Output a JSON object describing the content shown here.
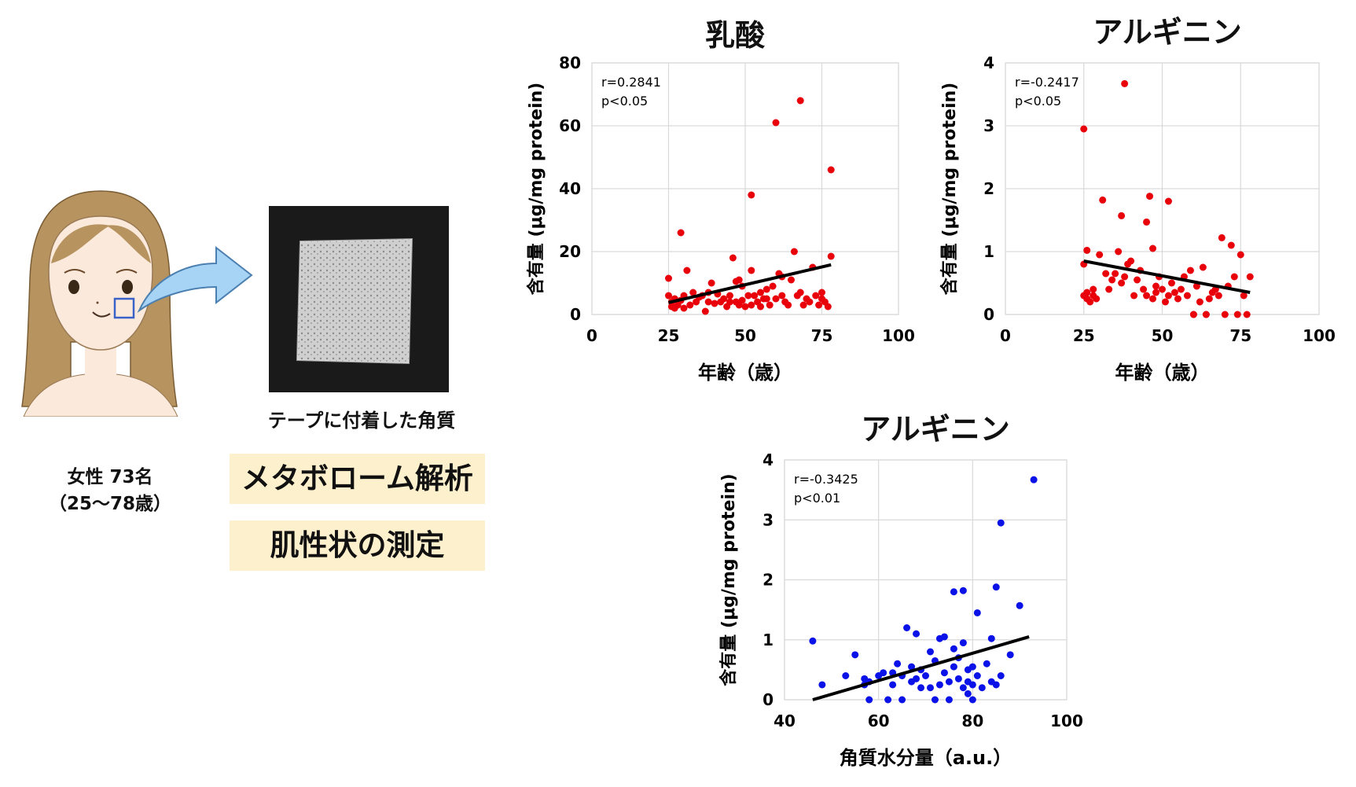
{
  "subject": {
    "line1": "女性 73名",
    "line2": "（25〜78歳）"
  },
  "tape_label": "テープに付着した角質",
  "badges": [
    "メタボローム解析",
    "肌性状の測定"
  ],
  "chart_data": [
    {
      "type": "scatter",
      "title": "乳酸",
      "xlabel": "年齢（歳）",
      "ylabel": "含有量 (μg/mg protein)",
      "xlim": [
        0,
        100
      ],
      "ylim": [
        0,
        80
      ],
      "xticks": [
        0,
        25,
        50,
        75,
        100
      ],
      "yticks": [
        0,
        20,
        40,
        60,
        80
      ],
      "annotation": [
        "r=0.2841",
        "p<0.05"
      ],
      "color": "#e8000b",
      "trendline": [
        [
          25,
          3.8
        ],
        [
          78,
          15.8
        ]
      ],
      "points": [
        [
          25,
          11.5
        ],
        [
          25,
          6
        ],
        [
          26,
          4
        ],
        [
          26,
          2.5
        ],
        [
          27,
          5
        ],
        [
          27,
          2
        ],
        [
          28,
          3
        ],
        [
          29,
          4.5
        ],
        [
          29,
          26
        ],
        [
          30,
          2
        ],
        [
          30,
          6
        ],
        [
          31,
          14
        ],
        [
          32,
          3
        ],
        [
          33,
          7
        ],
        [
          34,
          4
        ],
        [
          35,
          5.5
        ],
        [
          36,
          6
        ],
        [
          37,
          1
        ],
        [
          38,
          4
        ],
        [
          39,
          10
        ],
        [
          40,
          3.5
        ],
        [
          41,
          6.5
        ],
        [
          42,
          4
        ],
        [
          43,
          5
        ],
        [
          44,
          2.5
        ],
        [
          45,
          6
        ],
        [
          46,
          18
        ],
        [
          47,
          10.5
        ],
        [
          47,
          4
        ],
        [
          48,
          11
        ],
        [
          49,
          9
        ],
        [
          49,
          4.5
        ],
        [
          50,
          2.5
        ],
        [
          51,
          6
        ],
        [
          52,
          3
        ],
        [
          52,
          38
        ],
        [
          52,
          14
        ],
        [
          53,
          6
        ],
        [
          54,
          4
        ],
        [
          55,
          2.5
        ],
        [
          56,
          5
        ],
        [
          57,
          8
        ],
        [
          58,
          3
        ],
        [
          59,
          9
        ],
        [
          60,
          5
        ],
        [
          60,
          61
        ],
        [
          61,
          13
        ],
        [
          62,
          6
        ],
        [
          63,
          4
        ],
        [
          64,
          3
        ],
        [
          65,
          11
        ],
        [
          66,
          20
        ],
        [
          67,
          6
        ],
        [
          68,
          7
        ],
        [
          68,
          68
        ],
        [
          69,
          3
        ],
        [
          70,
          5
        ],
        [
          71,
          4
        ],
        [
          72,
          15
        ],
        [
          73,
          6
        ],
        [
          74,
          3
        ],
        [
          75,
          5
        ],
        [
          75,
          7
        ],
        [
          76,
          4
        ],
        [
          77,
          2.5
        ],
        [
          78,
          46
        ],
        [
          78,
          18.5
        ],
        [
          45,
          4
        ],
        [
          55,
          7
        ],
        [
          38,
          7
        ],
        [
          62,
          12
        ],
        [
          48,
          3
        ],
        [
          57,
          5
        ]
      ]
    },
    {
      "type": "scatter",
      "title": "アルギニン",
      "xlabel": "年齢（歳）",
      "ylabel": "含有量 (μg/mg protein)",
      "xlim": [
        0,
        100
      ],
      "ylim": [
        0,
        4
      ],
      "xticks": [
        0,
        25,
        50,
        75,
        100
      ],
      "yticks": [
        0,
        1,
        2,
        3,
        4
      ],
      "annotation": [
        "r=-0.2417",
        "p<0.05"
      ],
      "color": "#e8000b",
      "trendline": [
        [
          25,
          0.85
        ],
        [
          78,
          0.35
        ]
      ],
      "points": [
        [
          25,
          2.95
        ],
        [
          25,
          0.8
        ],
        [
          25,
          0.3
        ],
        [
          26,
          0.35
        ],
        [
          26,
          0.25
        ],
        [
          26,
          1.02
        ],
        [
          27,
          0.2
        ],
        [
          28,
          0.3
        ],
        [
          28,
          0.4
        ],
        [
          29,
          0.25
        ],
        [
          30,
          0.95
        ],
        [
          31,
          1.82
        ],
        [
          32,
          0.65
        ],
        [
          33,
          0.4
        ],
        [
          34,
          0.55
        ],
        [
          35,
          0.65
        ],
        [
          36,
          1.0
        ],
        [
          37,
          0.5
        ],
        [
          37,
          1.57
        ],
        [
          38,
          3.67
        ],
        [
          38,
          0.6
        ],
        [
          39,
          0.8
        ],
        [
          40,
          0.85
        ],
        [
          41,
          0.3
        ],
        [
          42,
          0.55
        ],
        [
          43,
          0.7
        ],
        [
          44,
          0.4
        ],
        [
          45,
          1.47
        ],
        [
          45,
          0.3
        ],
        [
          46,
          1.88
        ],
        [
          47,
          0.25
        ],
        [
          47,
          1.05
        ],
        [
          48,
          0.35
        ],
        [
          48,
          0.45
        ],
        [
          49,
          0.6
        ],
        [
          50,
          0.4
        ],
        [
          51,
          0.2
        ],
        [
          52,
          0.3
        ],
        [
          52,
          1.8
        ],
        [
          53,
          0.5
        ],
        [
          54,
          0.35
        ],
        [
          55,
          0.25
        ],
        [
          56,
          0.4
        ],
        [
          57,
          0.6
        ],
        [
          58,
          0.3
        ],
        [
          59,
          0.7
        ],
        [
          60,
          0.0
        ],
        [
          61,
          0.45
        ],
        [
          62,
          0.2
        ],
        [
          63,
          0.75
        ],
        [
          64,
          0.0
        ],
        [
          65,
          0.25
        ],
        [
          66,
          0.35
        ],
        [
          67,
          0.4
        ],
        [
          68,
          0.3
        ],
        [
          69,
          1.22
        ],
        [
          70,
          0.0
        ],
        [
          71,
          0.45
        ],
        [
          72,
          1.1
        ],
        [
          73,
          0.6
        ],
        [
          74,
          0.0
        ],
        [
          75,
          0.95
        ],
        [
          76,
          0.3
        ],
        [
          77,
          0.0
        ],
        [
          78,
          0.6
        ],
        [
          64,
          0.0
        ],
        [
          60,
          0.0
        ]
      ]
    },
    {
      "type": "scatter",
      "title": "アルギニン",
      "xlabel": "角質水分量（a.u.）",
      "ylabel": "含有量 (μg/mg protein)",
      "xlim": [
        40,
        100
      ],
      "ylim": [
        0,
        4
      ],
      "xticks": [
        40,
        60,
        80,
        100
      ],
      "yticks": [
        0,
        1,
        2,
        3,
        4
      ],
      "annotation": [
        "r=-0.3425",
        "p<0.01"
      ],
      "color": "#0a12e8",
      "trendline": [
        [
          46,
          0.0
        ],
        [
          92,
          1.05
        ]
      ],
      "points": [
        [
          46,
          0.98
        ],
        [
          48,
          0.25
        ],
        [
          53,
          0.4
        ],
        [
          55,
          0.75
        ],
        [
          57,
          0.35
        ],
        [
          57,
          0.25
        ],
        [
          58,
          0.0
        ],
        [
          58,
          0.3
        ],
        [
          60,
          0.4
        ],
        [
          61,
          0.45
        ],
        [
          62,
          0.0
        ],
        [
          63,
          0.25
        ],
        [
          63,
          0.45
        ],
        [
          64,
          0.6
        ],
        [
          65,
          0.0
        ],
        [
          65,
          0.4
        ],
        [
          66,
          1.2
        ],
        [
          67,
          0.3
        ],
        [
          67,
          0.55
        ],
        [
          68,
          0.35
        ],
        [
          68,
          1.1
        ],
        [
          69,
          0.5
        ],
        [
          70,
          0.4
        ],
        [
          71,
          0.2
        ],
        [
          71,
          0.8
        ],
        [
          72,
          0.65
        ],
        [
          73,
          0.25
        ],
        [
          73,
          1.02
        ],
        [
          74,
          1.05
        ],
        [
          74,
          0.45
        ],
        [
          75,
          0.3
        ],
        [
          75,
          0.0
        ],
        [
          76,
          0.55
        ],
        [
          76,
          1.8
        ],
        [
          77,
          0.7
        ],
        [
          77,
          0.35
        ],
        [
          78,
          0.2
        ],
        [
          78,
          0.95
        ],
        [
          78,
          1.82
        ],
        [
          79,
          0.5
        ],
        [
          79,
          0.3
        ],
        [
          80,
          0.55
        ],
        [
          80,
          0.25
        ],
        [
          81,
          1.45
        ],
        [
          81,
          0.4
        ],
        [
          82,
          0.2
        ],
        [
          83,
          0.6
        ],
        [
          84,
          1.02
        ],
        [
          84,
          0.3
        ],
        [
          85,
          1.88
        ],
        [
          85,
          0.25
        ],
        [
          86,
          0.4
        ],
        [
          86,
          2.95
        ],
        [
          88,
          0.75
        ],
        [
          90,
          1.57
        ],
        [
          93,
          3.67
        ],
        [
          72,
          0.0
        ],
        [
          76,
          0.85
        ],
        [
          79,
          0.1
        ],
        [
          69,
          0.2
        ],
        [
          80,
          0.0
        ]
      ]
    }
  ]
}
